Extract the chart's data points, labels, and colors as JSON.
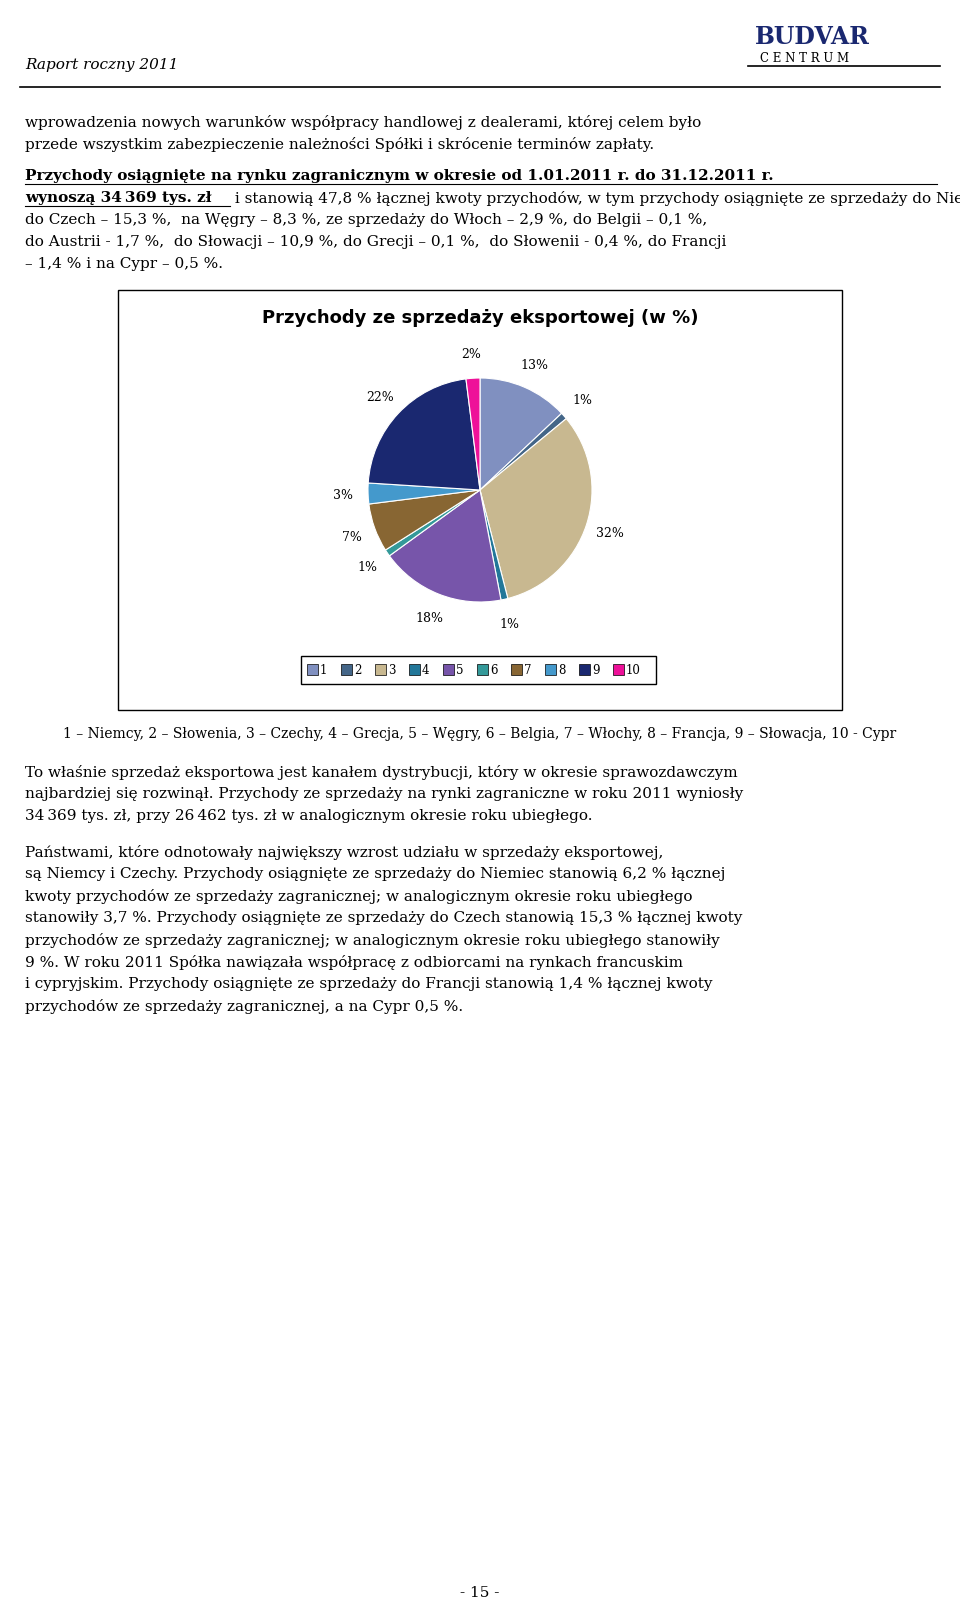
{
  "title": "Przychody ze sprzedaży eksportowej (w %)",
  "pie_vals": [
    13,
    1,
    32,
    1,
    18,
    1,
    7,
    3,
    22,
    2
  ],
  "pie_colors": [
    "#8090C0",
    "#446688",
    "#C8B890",
    "#227799",
    "#7755AA",
    "#339999",
    "#886633",
    "#4499CC",
    "#1A2870",
    "#EE1199"
  ],
  "legend_nums": [
    "1",
    "2",
    "3",
    "4",
    "5",
    "6",
    "7",
    "8",
    "9",
    "10"
  ],
  "caption": "1 – Niemcy, 2 – Słowenia, 3 – Czechy, 4 – Grecja, 5 – Węgry, 6 – Belgia, 7 – Włochy, 8 – Francja, 9 – Słowacja, 10 - Cypr",
  "header_left": "Raport roczny 2011",
  "page_num": "- 15 -",
  "background_color": "#FFFFFF"
}
